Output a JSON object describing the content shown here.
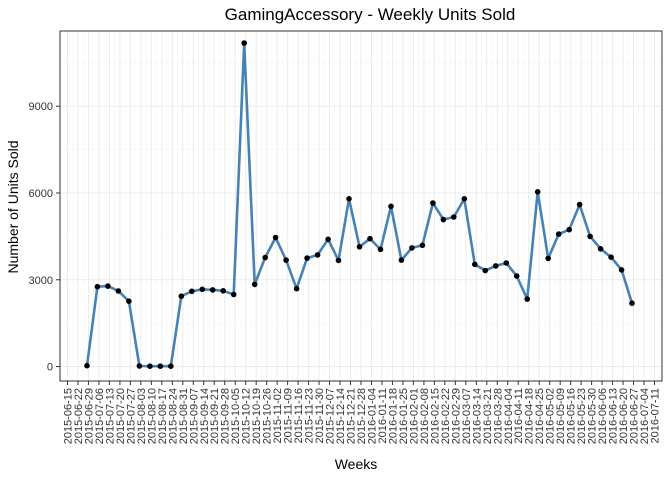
{
  "chart_data": {
    "type": "line",
    "title": "GamingAccessory - Weekly Units Sold",
    "xlabel": "Weeks",
    "ylabel": "Number of Units Sold",
    "ylim": [
      -500,
      11600
    ],
    "yticks": [
      0,
      3000,
      6000,
      9000
    ],
    "ytick_labels": [
      "0",
      "3000",
      "6000",
      "9000"
    ],
    "grid": true,
    "line_color": "#4682B4",
    "point_color": "#000000",
    "panel_border": "#333333",
    "x_range_dates": [
      "2015-06-10",
      "2016-07-16"
    ],
    "tick_dates": [
      "2015-06-15",
      "2015-06-22",
      "2015-06-29",
      "2015-07-06",
      "2015-07-13",
      "2015-07-20",
      "2015-07-27",
      "2015-08-03",
      "2015-08-10",
      "2015-08-17",
      "2015-08-24",
      "2015-08-31",
      "2015-09-07",
      "2015-09-14",
      "2015-09-21",
      "2015-09-28",
      "2015-10-05",
      "2015-10-12",
      "2015-10-19",
      "2015-10-26",
      "2015-11-02",
      "2015-11-09",
      "2015-11-16",
      "2015-11-23",
      "2015-11-30",
      "2015-12-07",
      "2015-12-14",
      "2015-12-21",
      "2015-12-28",
      "2016-01-04",
      "2016-01-11",
      "2016-01-18",
      "2016-01-25",
      "2016-02-01",
      "2016-02-08",
      "2016-02-15",
      "2016-02-22",
      "2016-02-29",
      "2016-03-07",
      "2016-03-14",
      "2016-03-21",
      "2016-03-28",
      "2016-04-04",
      "2016-04-11",
      "2016-04-18",
      "2016-04-25",
      "2016-05-02",
      "2016-05-09",
      "2016-05-16",
      "2016-05-23",
      "2016-05-30",
      "2016-06-06",
      "2016-06-13",
      "2016-06-20",
      "2016-06-27",
      "2016-07-04",
      "2016-07-11"
    ],
    "tick_labels": [
      "2015-06-15",
      "2015-06-22",
      "2015-06-29",
      "2015-07-06",
      "2015-07-13",
      "2015-07-20",
      "2015-07-27",
      "2015-08-03",
      "2015-08-10",
      "2015-08-17",
      "2015-08-24",
      "2015-08-31",
      "2015-09-07",
      "2015-09-14",
      "2015-09-21",
      "2015-09-28",
      "2015-10-05",
      "2015-10-12",
      "2015-10-19",
      "2015-10-26",
      "2015-11-02",
      "2015-11-09",
      "2015-11-16",
      "2015-11-23",
      "2015-11-30",
      "2015-12-07",
      "2015-12-14",
      "2015-12-21",
      "2015-12-28",
      "2016-01-04",
      "2016-01-11",
      "2016-01-18",
      "2016-01-25",
      "2016-02-01",
      "2016-02-08",
      "2016-02-15",
      "2016-02-22",
      "2016-02-29",
      "2016-03-07",
      "2016-03-14",
      "2016-03-21",
      "2016-03-28",
      "2016-04-04",
      "2016-04-11",
      "2016-04-18",
      "2016-04-25",
      "2016-05-02",
      "2016-05-09",
      "2016-05-16",
      "2016-05-23",
      "2016-05-30",
      "2016-06-06",
      "2016-06-13",
      "2016-06-20",
      "2016-06-27",
      "2016-07-04",
      "2016-07-11"
    ],
    "points": [
      {
        "x": "2015-06-28",
        "y": 30
      },
      {
        "x": "2015-07-05",
        "y": 2760
      },
      {
        "x": "2015-07-12",
        "y": 2780
      },
      {
        "x": "2015-07-19",
        "y": 2610
      },
      {
        "x": "2015-07-26",
        "y": 2260
      },
      {
        "x": "2015-08-02",
        "y": 20
      },
      {
        "x": "2015-08-09",
        "y": 10
      },
      {
        "x": "2015-08-16",
        "y": 10
      },
      {
        "x": "2015-08-23",
        "y": 10
      },
      {
        "x": "2015-08-30",
        "y": 2430
      },
      {
        "x": "2015-09-06",
        "y": 2600
      },
      {
        "x": "2015-09-13",
        "y": 2670
      },
      {
        "x": "2015-09-20",
        "y": 2650
      },
      {
        "x": "2015-09-27",
        "y": 2620
      },
      {
        "x": "2015-10-04",
        "y": 2490
      },
      {
        "x": "2015-10-11",
        "y": 11180
      },
      {
        "x": "2015-10-18",
        "y": 2840
      },
      {
        "x": "2015-10-25",
        "y": 3770
      },
      {
        "x": "2015-11-01",
        "y": 4460
      },
      {
        "x": "2015-11-08",
        "y": 3680
      },
      {
        "x": "2015-11-15",
        "y": 2690
      },
      {
        "x": "2015-11-22",
        "y": 3750
      },
      {
        "x": "2015-11-29",
        "y": 3860
      },
      {
        "x": "2015-12-06",
        "y": 4400
      },
      {
        "x": "2015-12-13",
        "y": 3670
      },
      {
        "x": "2015-12-20",
        "y": 5800
      },
      {
        "x": "2015-12-27",
        "y": 4140
      },
      {
        "x": "2016-01-03",
        "y": 4420
      },
      {
        "x": "2016-01-10",
        "y": 4050
      },
      {
        "x": "2016-01-17",
        "y": 5540
      },
      {
        "x": "2016-01-24",
        "y": 3680
      },
      {
        "x": "2016-01-31",
        "y": 4100
      },
      {
        "x": "2016-02-07",
        "y": 4190
      },
      {
        "x": "2016-02-14",
        "y": 5650
      },
      {
        "x": "2016-02-21",
        "y": 5080
      },
      {
        "x": "2016-02-28",
        "y": 5170
      },
      {
        "x": "2016-03-06",
        "y": 5800
      },
      {
        "x": "2016-03-13",
        "y": 3530
      },
      {
        "x": "2016-03-20",
        "y": 3320
      },
      {
        "x": "2016-03-27",
        "y": 3480
      },
      {
        "x": "2016-04-03",
        "y": 3580
      },
      {
        "x": "2016-04-10",
        "y": 3130
      },
      {
        "x": "2016-04-17",
        "y": 2330
      },
      {
        "x": "2016-04-24",
        "y": 6040
      },
      {
        "x": "2016-05-01",
        "y": 3740
      },
      {
        "x": "2016-05-08",
        "y": 4580
      },
      {
        "x": "2016-05-15",
        "y": 4730
      },
      {
        "x": "2016-05-22",
        "y": 5600
      },
      {
        "x": "2016-05-29",
        "y": 4500
      },
      {
        "x": "2016-06-05",
        "y": 4070
      },
      {
        "x": "2016-06-12",
        "y": 3780
      },
      {
        "x": "2016-06-19",
        "y": 3340
      },
      {
        "x": "2016-06-26",
        "y": 2190
      }
    ]
  }
}
